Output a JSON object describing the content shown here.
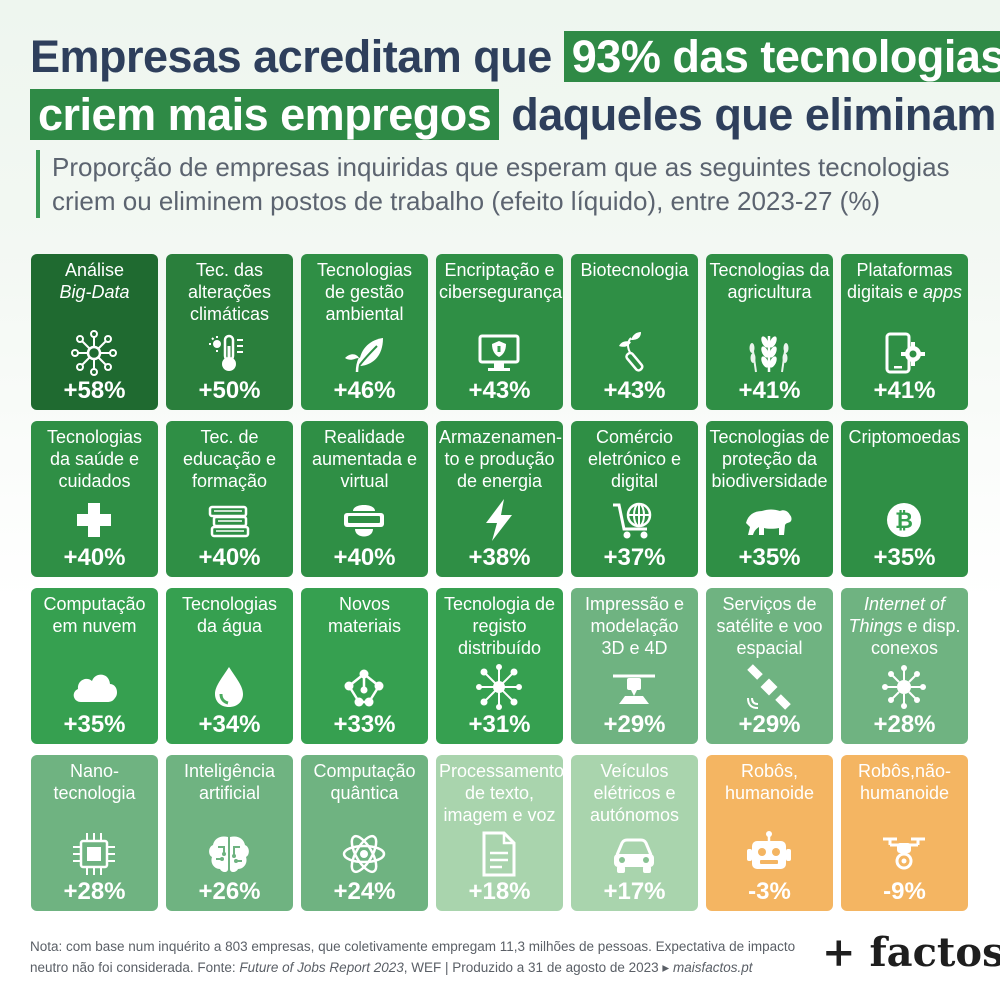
{
  "title": {
    "part1": "Empresas acreditam que ",
    "highlight1": "93% das tecnologias",
    "highlight2": "criem mais empregos",
    "part2": " daqueles que eliminam"
  },
  "subtitle": {
    "line1": "Proporção de empresas inquiridas que esperam que as seguintes tecnologias",
    "line2": "criem ou eliminem postos de trabalho (efeito líquido), entre 2023-27 (%)"
  },
  "colors": {
    "positive_scale": [
      "#1f6a30",
      "#2a7f3c",
      "#2f8f45",
      "#36a050",
      "#4aaa5e",
      "#6fb381",
      "#88c293",
      "#a9d4ad"
    ],
    "negative": "#f4b562"
  },
  "chart_data": {
    "type": "table",
    "unit": "%",
    "items": [
      {
        "label": "Análise Big-Data",
        "value": 58,
        "display": "+58%",
        "icon": "network-node-icon"
      },
      {
        "label": "Tec. das alterações climáticas",
        "value": 50,
        "display": "+50%",
        "icon": "thermometer-icon"
      },
      {
        "label": "Tecnologias de gestão ambiental",
        "value": 46,
        "display": "+46%",
        "icon": "leaf-hand-icon"
      },
      {
        "label": "Encriptação e cibersegurança",
        "value": 43,
        "display": "+43%",
        "icon": "shield-monitor-icon"
      },
      {
        "label": "Biotecnologia",
        "value": 43,
        "display": "+43%",
        "icon": "test-tube-plant-icon"
      },
      {
        "label": "Tecnologias da agricultura",
        "value": 41,
        "display": "+41%",
        "icon": "wheat-icon"
      },
      {
        "label": "Plataformas digitais e apps",
        "value": 41,
        "display": "+41%",
        "icon": "phone-gear-icon"
      },
      {
        "label": "Tecnologias da saúde e cuidados",
        "value": 40,
        "display": "+40%",
        "icon": "medical-cross-icon"
      },
      {
        "label": "Tec. de educação e formação",
        "value": 40,
        "display": "+40%",
        "icon": "books-icon"
      },
      {
        "label": "Realidade aumentada e virtual",
        "value": 40,
        "display": "+40%",
        "icon": "vr-headset-icon"
      },
      {
        "label": "Armazenamento e produção de energia",
        "value": 38,
        "display": "+38%",
        "icon": "lightning-icon"
      },
      {
        "label": "Comércio eletrónico e digital",
        "value": 37,
        "display": "+37%",
        "icon": "shopping-cart-globe-icon"
      },
      {
        "label": "Tecnologias de proteção da biodiversidade",
        "value": 35,
        "display": "+35%",
        "icon": "bear-icon"
      },
      {
        "label": "Criptomoedas",
        "value": 35,
        "display": "+35%",
        "icon": "bitcoin-icon"
      },
      {
        "label": "Computação em nuvem",
        "value": 35,
        "display": "+35%",
        "icon": "cloud-icon"
      },
      {
        "label": "Tecnologias da água",
        "value": 34,
        "display": "+34%",
        "icon": "water-drop-icon"
      },
      {
        "label": "Novos materiais",
        "value": 33,
        "display": "+33%",
        "icon": "molecule-icon"
      },
      {
        "label": "Tecnologia de registo distribuído",
        "value": 31,
        "display": "+31%",
        "icon": "distributed-network-icon"
      },
      {
        "label": "Impressão e modelação 3D e 4D",
        "value": 29,
        "display": "+29%",
        "icon": "3d-printer-icon"
      },
      {
        "label": "Serviços de satélite e voo espacial",
        "value": 29,
        "display": "+29%",
        "icon": "satellite-icon"
      },
      {
        "label": "Internet of Things e disp. conexos",
        "value": 28,
        "display": "+28%",
        "icon": "iot-hub-icon"
      },
      {
        "label": "Nanotecnologia",
        "value": 28,
        "display": "+28%",
        "icon": "microchip-icon"
      },
      {
        "label": "Inteligência artificial",
        "value": 26,
        "display": "+26%",
        "icon": "brain-circuit-icon"
      },
      {
        "label": "Computação quântica",
        "value": 24,
        "display": "+24%",
        "icon": "atom-icon"
      },
      {
        "label": "Processamento de texto, imagem e voz",
        "value": 18,
        "display": "+18%",
        "icon": "document-icon"
      },
      {
        "label": "Veículos elétricos e autónomos",
        "value": 17,
        "display": "+17%",
        "icon": "car-icon"
      },
      {
        "label": "Robôs, humanoide",
        "value": -3,
        "display": "-3%",
        "icon": "robot-head-icon"
      },
      {
        "label": "Robôs,não-humanoide",
        "value": -9,
        "display": "-9%",
        "icon": "drone-icon"
      }
    ]
  },
  "tiles": [
    {
      "lines": [
        {
          "t": "Análise"
        },
        {
          "t": "Big-Data",
          "i": true
        }
      ]
    },
    {
      "lines": [
        {
          "t": "Tec. das"
        },
        {
          "t": "alterações"
        },
        {
          "t": "climáticas"
        }
      ]
    },
    {
      "lines": [
        {
          "t": "Tecnologias"
        },
        {
          "t": "de gestão"
        },
        {
          "t": "ambiental"
        }
      ]
    },
    {
      "lines": [
        {
          "t": "Encriptação e"
        },
        {
          "t": "cibersegurança"
        }
      ]
    },
    {
      "lines": [
        {
          "t": "Biotecnologia"
        }
      ]
    },
    {
      "lines": [
        {
          "t": "Tecnologias da"
        },
        {
          "t": "agricultura"
        }
      ]
    },
    {
      "lines": [
        {
          "t": "Plataformas"
        },
        {
          "t": "digitais e ",
          "tail": "apps"
        }
      ]
    },
    {
      "lines": [
        {
          "t": "Tecnologias"
        },
        {
          "t": "da saúde e"
        },
        {
          "t": "cuidados"
        }
      ]
    },
    {
      "lines": [
        {
          "t": "Tec. de"
        },
        {
          "t": "educação e"
        },
        {
          "t": "formação"
        }
      ]
    },
    {
      "lines": [
        {
          "t": "Realidade"
        },
        {
          "t": "aumentada e"
        },
        {
          "t": "virtual"
        }
      ]
    },
    {
      "lines": [
        {
          "t": "Armazenamen-"
        },
        {
          "t": "to e produção"
        },
        {
          "t": "de energia"
        }
      ]
    },
    {
      "lines": [
        {
          "t": "Comércio"
        },
        {
          "t": "eletrónico e"
        },
        {
          "t": "digital"
        }
      ]
    },
    {
      "lines": [
        {
          "t": "Tecnologias de"
        },
        {
          "t": "proteção da"
        },
        {
          "t": "biodiversidade"
        }
      ]
    },
    {
      "lines": [
        {
          "t": "Criptomoedas"
        }
      ]
    },
    {
      "lines": [
        {
          "t": "Computação"
        },
        {
          "t": "em nuvem"
        }
      ]
    },
    {
      "lines": [
        {
          "t": "Tecnologias"
        },
        {
          "t": "da água"
        }
      ]
    },
    {
      "lines": [
        {
          "t": "Novos"
        },
        {
          "t": "materiais"
        }
      ]
    },
    {
      "lines": [
        {
          "t": "Tecnologia de"
        },
        {
          "t": "registo"
        },
        {
          "t": "distribuído"
        }
      ]
    },
    {
      "lines": [
        {
          "t": "Impressão e"
        },
        {
          "t": "modelação"
        },
        {
          "t": "3D e 4D"
        }
      ]
    },
    {
      "lines": [
        {
          "t": "Serviços de"
        },
        {
          "t": "satélite e voo"
        },
        {
          "t": "espacial"
        }
      ]
    },
    {
      "lines": [
        {
          "t": "Internet of",
          "i": true
        },
        {
          "t": "Things",
          "i": true,
          "tail2": " e disp."
        },
        {
          "t": "conexos"
        }
      ]
    },
    {
      "lines": [
        {
          "t": "Nano-"
        },
        {
          "t": "tecnologia"
        }
      ]
    },
    {
      "lines": [
        {
          "t": "Inteligência"
        },
        {
          "t": "artificial"
        }
      ]
    },
    {
      "lines": [
        {
          "t": "Computação"
        },
        {
          "t": "quântica"
        }
      ]
    },
    {
      "lines": [
        {
          "t": "Processamento"
        },
        {
          "t": "de texto,"
        },
        {
          "t": "imagem e voz"
        }
      ]
    },
    {
      "lines": [
        {
          "t": "Veículos"
        },
        {
          "t": "elétricos e"
        },
        {
          "t": "autónomos"
        }
      ]
    },
    {
      "lines": [
        {
          "t": "Robôs,"
        },
        {
          "t": "humanoide"
        }
      ]
    },
    {
      "lines": [
        {
          "t": "Robôs,não-"
        },
        {
          "t": "humanoide"
        }
      ]
    }
  ],
  "note": {
    "line1": "Nota: com base num inquérito a 803 empresas, que coletivamente empregam 11,3 milhões de pessoas. Expectativa de impacto",
    "line2_a": "neutro não foi considerada. Fonte: ",
    "line2_source": "Future of Jobs Report 2023",
    "line2_b": ", WEF | Produzido a 31 de agosto de 2023 ▸ ",
    "line2_site": "maisfactos.pt"
  },
  "brand": "+ factos"
}
